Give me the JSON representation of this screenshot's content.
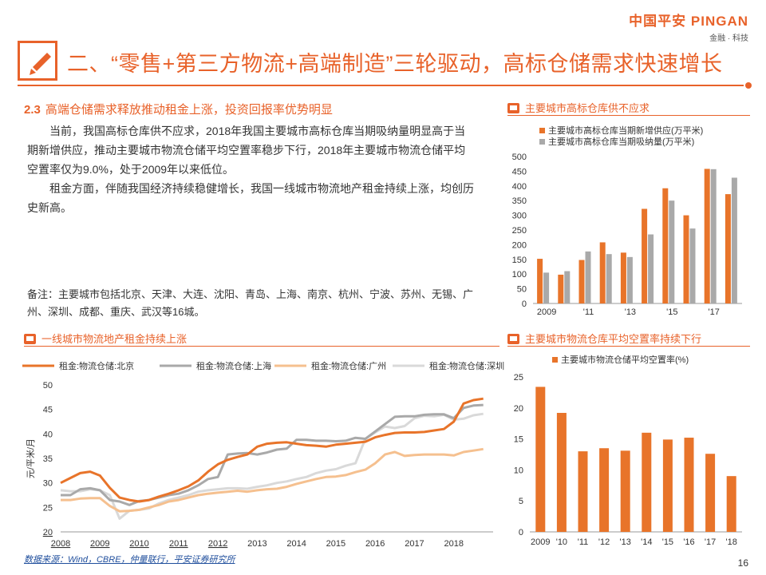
{
  "brand": {
    "name": "中国平安 PINGAN",
    "sub": "金融 · 科技"
  },
  "title": "二、“零售+第三方物流+高端制造”三轮驱动，高标仓储需求快速增长",
  "subheading": {
    "num": "2.3",
    "text": "高端仓储需求释放推动租金上涨，投资回报率优势明显"
  },
  "paragraphs": [
    "当前，我国高标仓库供不应求，2018年我国主要城市高标仓库当期吸纳量明显高于当期新增供应，推动主要城市物流仓储平均空置率稳步下行，2018年主要城市物流仓储平均空置率仅为9.0%，处于2009年以来低位。",
    "租金方面，伴随我国经济持续稳健增长，我国一线城市物流地产租金持续上涨，均创历史新高。"
  ],
  "note": "备注：主要城市包括北京、天津、大连、沈阳、青岛、上海、南京、杭州、宁波、苏州、无锡、广州、深圳、成都、重庆、武汉等16城。",
  "source": "数据来源：Wind，CBRE，仲量联行，平安证券研究所",
  "page_number": "16",
  "colors": {
    "accent": "#e8622a",
    "orange": "#e8742a",
    "gray": "#a9a9a9",
    "light_orange": "#f5c08f",
    "light_gray": "#d9d9d9"
  },
  "chart_data": [
    {
      "type": "bar",
      "title": "主要城市高标仓库供不应求",
      "categories": [
        "2009",
        "2010",
        "2011",
        "2012",
        "2013",
        "2014",
        "2015",
        "2016",
        "2017",
        "2018"
      ],
      "x_tick_labels": [
        "2009",
        "'11",
        "'13",
        "'15",
        "'17"
      ],
      "series": [
        {
          "name": "主要城市高标仓库当期新增供应(万平米)",
          "values": [
            152,
            98,
            148,
            208,
            173,
            322,
            392,
            300,
            458,
            372
          ]
        },
        {
          "name": "主要城市高标仓库当期吸纳量(万平米)",
          "values": [
            105,
            110,
            177,
            168,
            158,
            235,
            350,
            255,
            457,
            428
          ]
        }
      ],
      "ylim": [
        0,
        500
      ],
      "yticks": [
        0,
        50,
        100,
        150,
        200,
        250,
        300,
        350,
        400,
        450,
        500
      ],
      "legend": "top-left"
    },
    {
      "type": "line",
      "title": "一线城市物流地产租金持续上涨",
      "ylabel": "元/平米/月",
      "xlim": [
        2008,
        2019
      ],
      "x_tick_labels": [
        "2008",
        "2009",
        "2010",
        "2011",
        "2012",
        "2013",
        "2014",
        "2015",
        "2016",
        "2017",
        "2018"
      ],
      "ylim": [
        20,
        50
      ],
      "yticks": [
        20,
        25,
        30,
        35,
        40,
        45,
        50
      ],
      "legend": "top",
      "series": [
        {
          "name": "租金:物流仓储:北京",
          "x": [
            2008,
            2008.25,
            2008.5,
            2008.75,
            2009,
            2009.25,
            2009.5,
            2009.75,
            2010,
            2010.25,
            2010.5,
            2010.75,
            2011,
            2011.25,
            2011.5,
            2011.75,
            2012,
            2012.25,
            2012.5,
            2012.75,
            2013,
            2013.25,
            2013.5,
            2013.75,
            2014,
            2014.25,
            2014.5,
            2014.75,
            2015,
            2015.25,
            2015.5,
            2015.75,
            2016,
            2016.25,
            2016.5,
            2016.75,
            2017,
            2017.25,
            2017.5,
            2017.75,
            2018,
            2018.25,
            2018.5,
            2018.75
          ],
          "y": [
            30,
            31,
            32,
            32.3,
            31.5,
            29,
            27,
            26.5,
            26.2,
            26.5,
            27.2,
            27.8,
            28.5,
            29.3,
            30.5,
            32.3,
            33.8,
            34.7,
            35.3,
            35.8,
            37.4,
            38,
            38.2,
            38.3,
            38,
            37.7,
            37.6,
            37.4,
            37.8,
            38,
            38.2,
            38.4,
            39.3,
            39.8,
            40.2,
            40.3,
            40.3,
            40.4,
            40.7,
            41,
            42.5,
            46.2,
            46.9,
            47.2
          ]
        },
        {
          "name": "租金:物流仓储:上海",
          "x": [
            2008,
            2008.25,
            2008.5,
            2008.75,
            2009,
            2009.25,
            2009.5,
            2009.75,
            2010,
            2010.25,
            2010.5,
            2010.75,
            2011,
            2011.25,
            2011.5,
            2011.75,
            2012,
            2012.25,
            2012.5,
            2012.75,
            2013,
            2013.25,
            2013.5,
            2013.75,
            2014,
            2014.25,
            2014.5,
            2014.75,
            2015,
            2015.25,
            2015.5,
            2015.75,
            2016,
            2016.25,
            2016.5,
            2016.75,
            2017,
            2017.25,
            2017.5,
            2017.75,
            2018,
            2018.25,
            2018.5,
            2018.75
          ],
          "y": [
            27.5,
            27.5,
            28.7,
            28.9,
            28.5,
            26.5,
            26.2,
            25.5,
            26.3,
            26.5,
            27,
            27.5,
            27.8,
            28.5,
            29.5,
            30.8,
            31.2,
            35.8,
            36,
            36.1,
            35.8,
            36.2,
            36.8,
            37,
            38.8,
            38.8,
            38.6,
            38.6,
            38.5,
            38.6,
            39.2,
            39,
            40.5,
            42,
            43.5,
            43.6,
            43.6,
            43.9,
            44,
            44,
            43.2,
            45.3,
            45.8,
            45.9
          ]
        },
        {
          "name": "租金:物流仓储:广州",
          "x": [
            2008,
            2008.25,
            2008.5,
            2008.75,
            2009,
            2009.25,
            2009.5,
            2009.75,
            2010,
            2010.25,
            2010.5,
            2010.75,
            2011,
            2011.25,
            2011.5,
            2011.75,
            2012,
            2012.25,
            2012.5,
            2012.75,
            2013,
            2013.25,
            2013.5,
            2013.75,
            2014,
            2014.25,
            2014.5,
            2014.75,
            2015,
            2015.25,
            2015.5,
            2015.75,
            2016,
            2016.25,
            2016.5,
            2016.75,
            2017,
            2017.25,
            2017.5,
            2017.75,
            2018,
            2018.25,
            2018.5,
            2018.75
          ],
          "y": [
            26.5,
            26.5,
            26.8,
            26.9,
            26.9,
            25.3,
            24.2,
            24.3,
            24.5,
            25,
            25.5,
            26.2,
            26.5,
            27,
            27.5,
            27.8,
            28,
            28.2,
            28.4,
            28.2,
            28.5,
            28.7,
            28.8,
            29.2,
            29.8,
            30.3,
            30.8,
            31.2,
            31.3,
            31.6,
            32.2,
            32.7,
            34,
            35.8,
            36.3,
            35.5,
            35.7,
            35.8,
            35.8,
            35.8,
            35.6,
            36.3,
            36.6,
            36.9
          ]
        },
        {
          "name": "租金:物流仓储:深圳",
          "x": [
            2008,
            2008.25,
            2008.5,
            2008.75,
            2009,
            2009.25,
            2009.5,
            2009.75,
            2010,
            2010.25,
            2010.5,
            2010.75,
            2011,
            2011.25,
            2011.5,
            2011.75,
            2012,
            2012.25,
            2012.5,
            2012.75,
            2013,
            2013.25,
            2013.5,
            2013.75,
            2014,
            2014.25,
            2014.5,
            2014.75,
            2015,
            2015.25,
            2015.5,
            2015.75,
            2016,
            2016.25,
            2016.5,
            2016.75,
            2017,
            2017.25,
            2017.5,
            2017.75,
            2018,
            2018.25,
            2018.5,
            2018.75
          ],
          "y": [
            28.5,
            28.3,
            28.3,
            28.7,
            28.5,
            27.5,
            22.7,
            24.3,
            24.5,
            24.8,
            25.8,
            26.5,
            27,
            27.5,
            28.2,
            28.5,
            28.7,
            28.9,
            28.9,
            28.8,
            29.2,
            29.5,
            30,
            30.3,
            30.8,
            31.2,
            32,
            32.5,
            32.8,
            33.5,
            34,
            39,
            40.3,
            41.5,
            41.2,
            41.6,
            43.2,
            43.7,
            43.6,
            43.9,
            42.9,
            43.1,
            43.8,
            44.1
          ]
        }
      ]
    },
    {
      "type": "bar",
      "title": "主要城市物流仓库平均空置率持续下行",
      "categories": [
        "2009",
        "2010",
        "2011",
        "2012",
        "2013",
        "2014",
        "2015",
        "2016",
        "2017",
        "2018"
      ],
      "x_tick_labels": [
        "2009",
        "'10",
        "'11",
        "'12",
        "'13",
        "'14",
        "'15",
        "'16",
        "'17",
        "'18"
      ],
      "series": [
        {
          "name": "主要城市物流仓储平均空置率(%)",
          "values": [
            23.4,
            19.2,
            13,
            13.5,
            13.1,
            16,
            14.9,
            15.2,
            12.6,
            9
          ]
        }
      ],
      "ylim": [
        0,
        25
      ],
      "yticks": [
        0,
        5,
        10,
        15,
        20,
        25
      ],
      "legend": "top-left"
    }
  ]
}
